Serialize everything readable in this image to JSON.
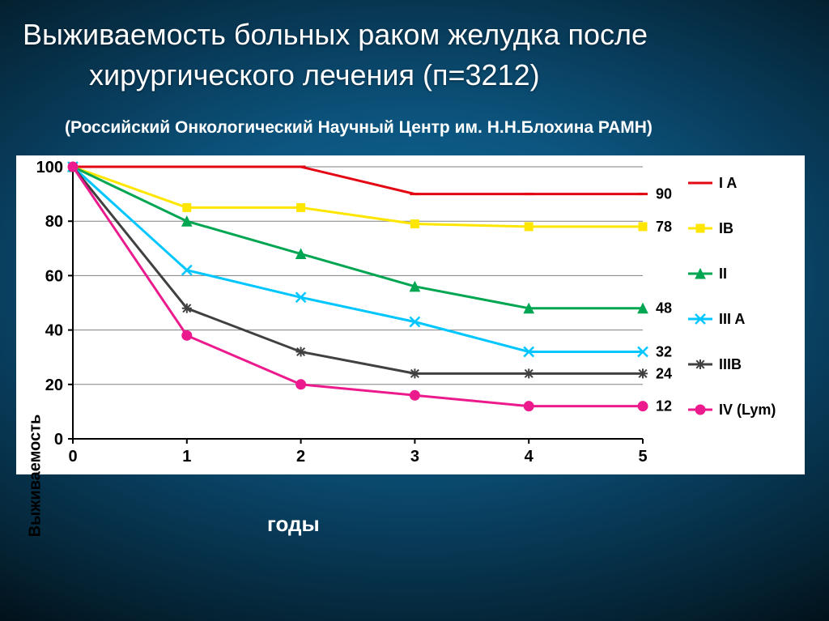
{
  "title_line1": "Выживаемость больных раком желудка после",
  "title_line2": "хирургического лечения (п=3212)",
  "subtitle": "(Российский Онкологический Научный Центр им. Н.Н.Блохина РАМН)",
  "x_axis_label": "годы",
  "y_axis_label": "Выживаемость",
  "chart": {
    "type": "line",
    "background_color": "#ffffff",
    "axis_color": "#000000",
    "grid_color": "#808080",
    "axis_width": 2,
    "grid_width": 1,
    "tick_label_fontsize": 20,
    "tick_label_weight": "bold",
    "xlim": [
      0,
      5
    ],
    "ylim": [
      0,
      100
    ],
    "xticks": [
      0,
      1,
      2,
      3,
      4,
      5
    ],
    "yticks": [
      0,
      20,
      40,
      60,
      80,
      100
    ],
    "data_label_fontsize": 18,
    "legend_fontsize": 18,
    "series": [
      {
        "id": "IA",
        "label": "I A",
        "color": "#e30613",
        "marker": "dash",
        "y": [
          100,
          100,
          100,
          90,
          90,
          90
        ],
        "end_label": "90"
      },
      {
        "id": "IB",
        "label": "IB",
        "color": "#ffe600",
        "marker": "square",
        "y": [
          100,
          85,
          85,
          79,
          78,
          78
        ],
        "end_label": "78"
      },
      {
        "id": "II",
        "label": "II",
        "color": "#00a651",
        "marker": "triangle",
        "y": [
          100,
          80,
          68,
          56,
          48,
          48
        ],
        "end_label": "48"
      },
      {
        "id": "IIIA",
        "label": "III A",
        "color": "#00c6ff",
        "marker": "x",
        "y": [
          100,
          62,
          52,
          43,
          32,
          32
        ],
        "end_label": "32"
      },
      {
        "id": "IIIB",
        "label": "IIIB",
        "color": "#404040",
        "marker": "star",
        "y": [
          100,
          48,
          32,
          24,
          24,
          24
        ],
        "end_label": "24"
      },
      {
        "id": "IV",
        "label": "IV (Lym)",
        "color": "#ec1b8d",
        "marker": "circle",
        "y": [
          100,
          38,
          20,
          16,
          12,
          12
        ],
        "end_label": "12"
      }
    ],
    "legend_order": [
      "IA",
      "IB",
      "II",
      "IIIA",
      "IIIB",
      "IV"
    ]
  }
}
